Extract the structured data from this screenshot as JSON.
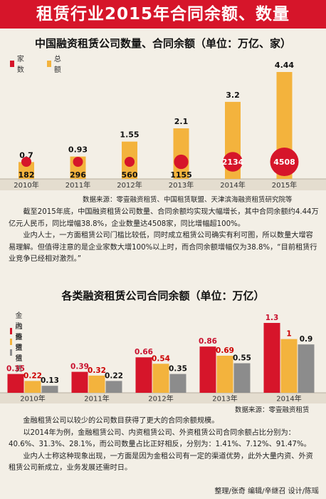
{
  "banner": {
    "title": "租赁行业2015年合同余额、数量"
  },
  "chart_data": [
    {
      "type": "bar",
      "title": "中国融资租赁公司数量、合同余额（单位：万亿、家）",
      "categories": [
        "2010年",
        "2011年",
        "2012年",
        "2013年",
        "2014年",
        "2015年"
      ],
      "series": [
        {
          "name": "家数",
          "values": [
            182,
            296,
            560,
            1155,
            2134,
            4508
          ],
          "color": "#d6152a"
        },
        {
          "name": "总额",
          "values": [
            0.7,
            0.93,
            1.55,
            2.1,
            3.2,
            4.44
          ],
          "color": "#f3b33d"
        }
      ],
      "value_labels": {
        "家数": [
          "182",
          "296",
          "560",
          "1155",
          "2134",
          "4508"
        ],
        "总额": [
          "0.7",
          "0.93",
          "1.55",
          "2.1",
          "3.2",
          "4.44"
        ]
      },
      "legend_position": "top-left"
    },
    {
      "type": "bar",
      "title": "各类融资租赁公司合同余额（单位：万亿）",
      "categories": [
        "2010年",
        "2011年",
        "2012年",
        "2013年",
        "2014年"
      ],
      "series": [
        {
          "name": "金融租赁",
          "values": [
            0.35,
            0.39,
            0.66,
            0.86,
            1.3
          ],
          "color": "#d6152a"
        },
        {
          "name": "内资租赁",
          "values": [
            0.22,
            0.32,
            0.54,
            0.69,
            1
          ],
          "color": "#f3b33d"
        },
        {
          "name": "外资租赁",
          "values": [
            0.13,
            0.22,
            0.35,
            0.55,
            0.9
          ],
          "color": "#8c8c8c"
        }
      ],
      "value_labels": {
        "金融租赁": [
          "0.35",
          "0.39",
          "0.66",
          "0.86",
          "1.3"
        ],
        "内资租赁": [
          "0.22",
          "0.32",
          "0.54",
          "0.69",
          "1"
        ],
        "外资租赁": [
          "0.13",
          "0.22",
          "0.35",
          "0.55",
          "0.9"
        ]
      },
      "legend_position": "top-left"
    }
  ],
  "source1": "数据来源：零壹融资租赁、中国租赁联盟、天津滨海融资租赁研究院等",
  "paragraphs1": [
    "　　截至2015年底，中国融资租赁公司数量、合同余额均实现大幅增长，其中合同余额约4.44万亿元人民币，同比增幅38.8%，企业数量达4508家，同比增幅超100%。",
    "　　业内人士，一方面租赁公司门槛比较低，同时成立租赁公司确实有利可图，所以数量大增容易理解。但值得注意的是企业家数大增100%以上时，而合同余额增幅仅为38.8%，“目前租赁行业竞争已经相对激烈。”"
  ],
  "source2": "数据来源：零壹融资租赁",
  "paragraphs2": [
    "　　金融租赁公司以较少的公司数目获得了更大的合同余额规模。",
    "　　以2014年为例，金融租赁公司、内资租赁公司、外资租赁公司合同余额占比分别为：40.6%、31.3%、28.1%，而公司数量占比正好相反，分别为：1.41%、7.12%、91.47%。",
    "　　业内人士称这种现象出现，一方面是因为金租公司有一定的渠道优势，此外大量内资、外资租赁公司新成立，业务发展还需时日。"
  ],
  "footer": "整理/张奇  编辑/辛继召  设计/陈瑶"
}
